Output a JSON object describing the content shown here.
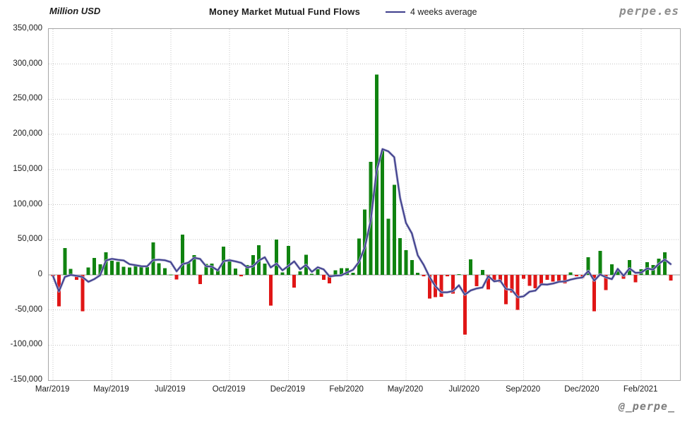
{
  "header": {
    "y_axis_unit": "Million USD",
    "title": "Money Market Mutual Fund Flows",
    "legend_label": "4 weeks average",
    "brand_watermark": "perpe.es"
  },
  "footer": {
    "author_handle": "@_perpe_"
  },
  "chart_data": {
    "type": "bar",
    "title": "Money Market Mutual Fund Flows",
    "y_unit": "Million USD",
    "ylim": [
      -150000,
      350000
    ],
    "y_tick_step": 50000,
    "y_tick_labels": [
      "350,000",
      "300,000",
      "250,000",
      "200,000",
      "150,000",
      "100,000",
      "50,000",
      "0",
      "-50,000",
      "-100,000",
      "-150,000"
    ],
    "x_tick_labels": [
      "Mar/2019",
      "May/2019",
      "Jul/2019",
      "Oct/2019",
      "Dec/2019",
      "Feb/2020",
      "May/2020",
      "Jul/2020",
      "Sep/2020",
      "Dec/2020",
      "Feb/2021"
    ],
    "x_tick_indices": [
      0,
      10,
      20,
      30,
      40,
      50,
      60,
      70,
      80,
      90,
      100
    ],
    "grid": true,
    "legend_position": "top",
    "series": [
      {
        "name": "Money Market Mutual Fund Flows",
        "type": "bar",
        "frequency": "weekly",
        "positive_color": "#108310",
        "negative_color": "#e01616",
        "values": [
          -2000,
          -45000,
          38000,
          8500,
          -7000,
          -52000,
          10500,
          24000,
          15000,
          32000,
          20000,
          18500,
          11500,
          10500,
          14500,
          12500,
          11000,
          46000,
          16500,
          9500,
          500,
          -6500,
          57000,
          18500,
          28000,
          -13000,
          15500,
          16000,
          6500,
          40000,
          21000,
          9000,
          -2000,
          14000,
          28000,
          42000,
          16000,
          -44000,
          50000,
          3500,
          41000,
          -18000,
          5000,
          28500,
          1500,
          8000,
          -7000,
          -12000,
          6500,
          9500,
          9500,
          3000,
          51500,
          93000,
          161000,
          285000,
          177000,
          80000,
          128000,
          52000,
          35000,
          21000,
          3000,
          -2000,
          -34000,
          -32000,
          -31500,
          -2000,
          -27000,
          1000,
          -85000,
          22000,
          -16000,
          7000,
          -20500,
          -8000,
          -10500,
          -42000,
          -25000,
          -50000,
          -5500,
          -15500,
          -19000,
          -14000,
          -7000,
          -9500,
          -9000,
          -12000,
          3500,
          -2000,
          -4500,
          25000,
          -52000,
          34000,
          -21500,
          15000,
          6500,
          -5500,
          21000,
          -10500,
          8000,
          18000,
          14000,
          23000,
          32000,
          -8000
        ]
      },
      {
        "name": "4 weeks average",
        "type": "line",
        "derived": "trailing_4_week_average_of_bar_series",
        "color": "#3e3e8c"
      }
    ]
  },
  "style": {
    "gridline_color": "#c4c4c4",
    "axis_line_color": "#9a9a9a",
    "plot_border_color": "#a6a6a6"
  }
}
